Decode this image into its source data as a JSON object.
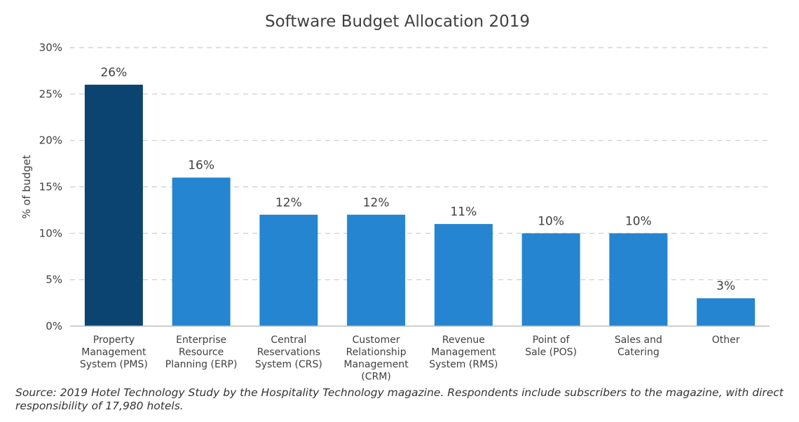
{
  "chart_data": {
    "type": "bar",
    "title": "Software Budget Allocation 2019",
    "xlabel": "",
    "ylabel": "% of budget",
    "ylim": [
      0,
      30
    ],
    "yticks": [
      0,
      5,
      10,
      15,
      20,
      25,
      30
    ],
    "ytick_labels": [
      "0%",
      "5%",
      "10%",
      "15%",
      "20%",
      "25%",
      "30%"
    ],
    "grid": true,
    "categories": [
      [
        "Property",
        "Management",
        "System (PMS)"
      ],
      [
        "Enterprise",
        "Resource",
        "Planning (ERP)"
      ],
      [
        "Central",
        "Reservations",
        "System (CRS)"
      ],
      [
        "Customer",
        "Relationship",
        "Management",
        "(CRM)"
      ],
      [
        "Revenue",
        "Management",
        "System (RMS)"
      ],
      [
        "Point of",
        "Sale (POS)"
      ],
      [
        "Sales and",
        "Catering"
      ],
      [
        "Other"
      ]
    ],
    "values": [
      26,
      16,
      12,
      12,
      11,
      10,
      10,
      3
    ],
    "data_labels": [
      "26%",
      "16%",
      "12%",
      "12%",
      "11%",
      "10%",
      "10%",
      "3%"
    ],
    "colors": {
      "highlight": "#0b4470",
      "bar": "#2585d0",
      "grid": "#cccccc",
      "axis": "#bfbfbf",
      "text": "#404040",
      "title": "#404040"
    },
    "highlight_index": 0
  },
  "source_note": "Source: 2019 Hotel Technology Study by the Hospitality Technology magazine. Respondents include subscribers to the magazine, with direct responsibility of 17,980 hotels."
}
